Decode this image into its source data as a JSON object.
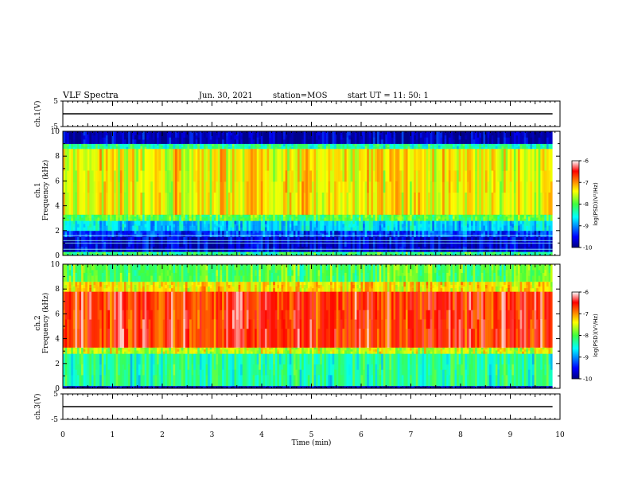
{
  "header": {
    "title": "VLF Spectra",
    "date": "Jun. 30, 2021",
    "station": "station=MOS",
    "start": "start UT =   11: 50: 1"
  },
  "chart_data": [
    {
      "type": "line",
      "panel": "ch1-waveform",
      "ylabel": "ch.1(V)",
      "ylim": [
        -5,
        5
      ],
      "yticks": [
        "5",
        "-5"
      ],
      "x": [
        0,
        10
      ],
      "series": [
        {
          "values": [
            0,
            0
          ]
        }
      ]
    },
    {
      "type": "heatmap",
      "panel": "ch1-spectrogram",
      "ylabel": "ch.1\nFrequency (kHz)",
      "ylabel_lines": [
        "ch.1",
        "Frequency (kHz)"
      ],
      "ylim": [
        0,
        10
      ],
      "xlim": [
        0,
        10
      ],
      "yticks": [
        "0",
        "2",
        "4",
        "6",
        "8",
        "10"
      ],
      "data_end_min": 9.85,
      "colorbar": {
        "label": "log(PSD)(V²/Hz)",
        "ticks": [
          "-6",
          "-7",
          "-8",
          "-9",
          "-10"
        ],
        "range": [
          -10,
          -6
        ]
      },
      "bands_khz": [
        {
          "from": 0,
          "to": 0.3,
          "level": -8.2
        },
        {
          "from": 0.3,
          "to": 1.5,
          "level": -9.7
        },
        {
          "from": 1.5,
          "to": 2.0,
          "level": -9.3
        },
        {
          "from": 2.0,
          "to": 2.8,
          "level": -8.7
        },
        {
          "from": 2.8,
          "to": 3.3,
          "level": -8.0
        },
        {
          "from": 3.3,
          "to": 8.6,
          "level": -7.4
        },
        {
          "from": 8.6,
          "to": 9.0,
          "level": -8.3
        },
        {
          "from": 9.0,
          "to": 10,
          "level": -9.8
        }
      ]
    },
    {
      "type": "heatmap",
      "panel": "ch2-spectrogram",
      "ylabel": "ch.2\nFrequency (kHz)",
      "ylabel_lines": [
        "ch.2",
        "Frequency (kHz)"
      ],
      "ylim": [
        0,
        10
      ],
      "xlim": [
        0,
        10
      ],
      "yticks": [
        "0",
        "2",
        "4",
        "6",
        "8",
        "10"
      ],
      "data_end_min": 9.85,
      "colorbar": {
        "label": "log(PSD)(V²/Hz)",
        "ticks": [
          "-6",
          "-7",
          "-8",
          "-9",
          "-10"
        ],
        "range": [
          -10,
          -6
        ]
      },
      "bands_khz": [
        {
          "from": 0,
          "to": 0.2,
          "level": -9.8
        },
        {
          "from": 0.2,
          "to": 2.8,
          "level": -8.3
        },
        {
          "from": 2.8,
          "to": 3.3,
          "level": -7.6
        },
        {
          "from": 3.3,
          "to": 7.8,
          "level": -6.6
        },
        {
          "from": 7.8,
          "to": 8.6,
          "level": -7.3
        },
        {
          "from": 8.6,
          "to": 10,
          "level": -8.0
        }
      ]
    },
    {
      "type": "line",
      "panel": "ch3-waveform",
      "ylabel": "ch.3(V)",
      "ylim": [
        -5,
        5
      ],
      "yticks": [
        "5",
        "-5"
      ],
      "x": [
        0,
        10
      ],
      "series": [
        {
          "values": [
            0,
            0
          ]
        }
      ]
    }
  ],
  "xaxis": {
    "label": "Time (min)",
    "ticks": [
      "0",
      "1",
      "2",
      "3",
      "4",
      "5",
      "6",
      "7",
      "8",
      "9",
      "10"
    ],
    "range": [
      0,
      10
    ]
  },
  "colors": {
    "jet": [
      "#00007f",
      "#0000ff",
      "#00a0ff",
      "#00ffff",
      "#40ff80",
      "#c0ff00",
      "#ffff00",
      "#ff8000",
      "#ff0000"
    ]
  }
}
